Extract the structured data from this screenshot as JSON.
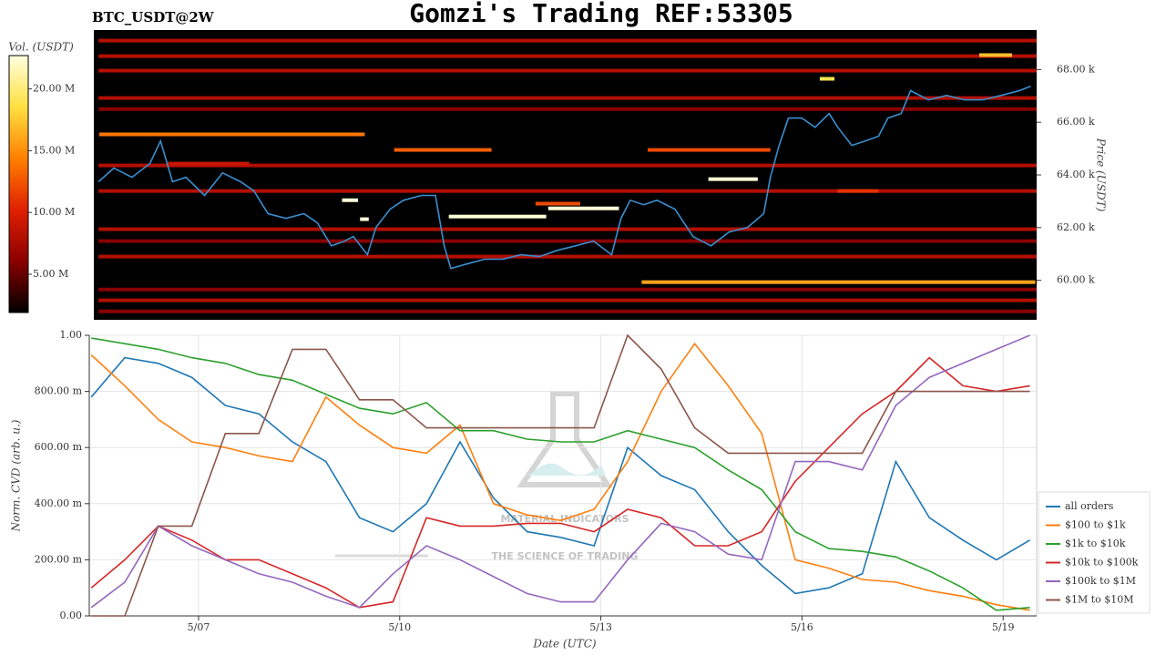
{
  "chart_data": [
    {
      "type": "heatmap",
      "title": "Gomzi's Trading REF:53305",
      "subtitle": "BTC_USDT@2W",
      "ylabel": "Price (USDT)",
      "xlim": [
        5.37,
        19.5
      ],
      "ylim": [
        58500,
        69500
      ],
      "yticks": [
        {
          "value": 60000,
          "label": "60.00 k"
        },
        {
          "value": 62000,
          "label": "62.00 k"
        },
        {
          "value": 64000,
          "label": "64.00 k"
        },
        {
          "value": 66000,
          "label": "66.00 k"
        },
        {
          "value": 68000,
          "label": "68.00 k"
        }
      ],
      "colorbar": {
        "label": "Vol. (USDT)",
        "clim": [
          1900000,
          22700000
        ],
        "ticks": [
          {
            "value": 5000000,
            "label": "5.00 M"
          },
          {
            "value": 10000000,
            "label": "10.00 M"
          },
          {
            "value": 15000000,
            "label": "15.00 M"
          },
          {
            "value": 20000000,
            "label": "20.00 M"
          }
        ],
        "colors": [
          "#000000",
          "#8b0000",
          "#e02000",
          "#ff8000",
          "#ffe040",
          "#ffffe0"
        ]
      },
      "levels": {
        "price": [
          69100,
          68510,
          67960,
          66920,
          66500,
          64360,
          63390,
          61940,
          61490,
          60900,
          59240,
          59650,
          58820,
          63040,
          62320,
          62420,
          62730,
          63840,
          67650,
          68550,
          65540,
          59930,
          64950,
          64950,
          62910,
          64430,
          63390
        ],
        "start": [
          5.44,
          5.44,
          5.44,
          5.44,
          5.44,
          5.44,
          5.44,
          5.44,
          5.44,
          5.44,
          5.44,
          5.44,
          5.44,
          9.09,
          9.36,
          10.69,
          12.18,
          14.58,
          16.25,
          18.64,
          5.45,
          13.58,
          9.87,
          13.67,
          11.99,
          6.48,
          16.52
        ],
        "end": [
          19.5,
          19.5,
          19.5,
          19.5,
          19.5,
          19.5,
          19.5,
          19.5,
          19.5,
          19.5,
          19.5,
          19.5,
          19.5,
          9.33,
          9.49,
          12.15,
          13.24,
          15.32,
          16.47,
          19.13,
          9.43,
          19.48,
          11.33,
          15.51,
          12.66,
          7.7,
          17.13
        ],
        "volume": [
          8000000,
          8000000,
          8000000,
          8000000,
          6000000,
          8000000,
          8000000,
          8000000,
          6000000,
          8000000,
          8000000,
          6000000,
          6000000,
          22500000,
          22500000,
          22500000,
          22500000,
          22500000,
          19000000,
          17000000,
          14000000,
          16000000,
          13000000,
          12000000,
          12000000,
          9000000,
          11000000
        ]
      },
      "line": {
        "color": "#3a8fd0",
        "x": [
          5.44,
          5.67,
          5.94,
          6.21,
          6.37,
          6.55,
          6.75,
          7.03,
          7.3,
          7.57,
          7.77,
          7.98,
          8.25,
          8.52,
          8.72,
          8.93,
          9.13,
          9.26,
          9.47,
          9.6,
          9.81,
          10.01,
          10.28,
          10.49,
          10.62,
          10.72,
          10.96,
          11.23,
          11.5,
          11.77,
          12.05,
          12.32,
          12.59,
          12.86,
          13.13,
          13.27,
          13.41,
          13.61,
          13.81,
          14.08,
          14.35,
          14.62,
          14.89,
          15.17,
          15.41,
          15.51,
          15.64,
          15.78,
          15.98,
          16.18,
          16.39,
          16.52,
          16.73,
          16.93,
          17.13,
          17.27,
          17.47,
          17.61,
          17.88,
          18.15,
          18.42,
          18.69,
          18.97,
          19.24,
          19.41
        ],
        "values": [
          63740,
          64260,
          63910,
          64430,
          65290,
          63740,
          63910,
          63220,
          64080,
          63740,
          63390,
          62530,
          62350,
          62530,
          62180,
          61310,
          61490,
          61660,
          60970,
          62010,
          62700,
          63040,
          63220,
          63220,
          61310,
          60450,
          60620,
          60800,
          60800,
          60970,
          60900,
          61140,
          61310,
          61490,
          60970,
          62350,
          63040,
          62870,
          63040,
          62700,
          61660,
          61310,
          61830,
          62010,
          62530,
          63910,
          65120,
          66160,
          66160,
          65810,
          66330,
          65810,
          65120,
          65290,
          65470,
          66160,
          66330,
          67200,
          66850,
          67020,
          66850,
          66850,
          67020,
          67200,
          67370
        ]
      }
    },
    {
      "type": "line",
      "xlabel": "Date (UTC)",
      "ylabel": "Norm. CVD (arb. u.)",
      "grid": true,
      "legend": "lower right",
      "watermark": {
        "title": "MATERIAL INDICATORS",
        "subtitle": "THE SCIENCE OF TRADING"
      },
      "xlim": [
        5.37,
        19.5
      ],
      "xticks": [
        {
          "value": 7,
          "label": "5/07"
        },
        {
          "value": 10,
          "label": "5/10"
        },
        {
          "value": 13,
          "label": "5/13"
        },
        {
          "value": 16,
          "label": "5/16"
        },
        {
          "value": 19,
          "label": "5/19"
        }
      ],
      "ylim": [
        0,
        1
      ],
      "yticks": [
        {
          "value": 0,
          "label": "0.00"
        },
        {
          "value": 0.2,
          "label": "200.00 m"
        },
        {
          "value": 0.4,
          "label": "400.00 m"
        },
        {
          "value": 0.6,
          "label": "600.00 m"
        },
        {
          "value": 0.8,
          "label": "800.00 m"
        },
        {
          "value": 1,
          "label": "1.00"
        }
      ],
      "x": [
        5.4,
        5.9,
        6.4,
        6.9,
        7.4,
        7.9,
        8.4,
        8.9,
        9.4,
        9.9,
        10.4,
        10.9,
        11.4,
        11.9,
        12.4,
        12.9,
        13.4,
        13.9,
        14.4,
        14.9,
        15.4,
        15.9,
        16.4,
        16.9,
        17.4,
        17.9,
        18.4,
        18.9,
        19.4
      ],
      "series": [
        {
          "name": "all orders",
          "color": "#1f77b4",
          "values": [
            0.78,
            0.92,
            0.9,
            0.85,
            0.75,
            0.72,
            0.62,
            0.55,
            0.35,
            0.3,
            0.4,
            0.62,
            0.42,
            0.3,
            0.28,
            0.25,
            0.6,
            0.5,
            0.45,
            0.3,
            0.18,
            0.08,
            0.1,
            0.15,
            0.55,
            0.35,
            0.27,
            0.2,
            0.27
          ]
        },
        {
          "name": "$100 to $1k",
          "color": "#ff7f0e",
          "values": [
            0.93,
            0.82,
            0.7,
            0.62,
            0.6,
            0.57,
            0.55,
            0.78,
            0.68,
            0.6,
            0.58,
            0.68,
            0.4,
            0.36,
            0.34,
            0.38,
            0.55,
            0.8,
            0.97,
            0.82,
            0.65,
            0.2,
            0.17,
            0.13,
            0.12,
            0.09,
            0.07,
            0.04,
            0.02
          ]
        },
        {
          "name": "$1k to $10k",
          "color": "#2ca02c",
          "values": [
            0.99,
            0.97,
            0.95,
            0.92,
            0.9,
            0.86,
            0.84,
            0.79,
            0.74,
            0.72,
            0.76,
            0.66,
            0.66,
            0.63,
            0.62,
            0.62,
            0.66,
            0.63,
            0.6,
            0.52,
            0.45,
            0.3,
            0.24,
            0.23,
            0.21,
            0.16,
            0.1,
            0.02,
            0.03
          ]
        },
        {
          "name": "$10k to $100k",
          "color": "#d62728",
          "values": [
            0.1,
            0.2,
            0.32,
            0.27,
            0.2,
            0.2,
            0.15,
            0.1,
            0.03,
            0.05,
            0.35,
            0.32,
            0.32,
            0.33,
            0.33,
            0.3,
            0.38,
            0.35,
            0.25,
            0.25,
            0.3,
            0.48,
            0.6,
            0.72,
            0.8,
            0.92,
            0.82,
            0.8,
            0.82
          ]
        },
        {
          "name": "$100k to $1M",
          "color": "#9467bd",
          "values": [
            0.03,
            0.12,
            0.32,
            0.25,
            0.2,
            0.15,
            0.12,
            0.07,
            0.03,
            0.15,
            0.25,
            0.2,
            0.14,
            0.08,
            0.05,
            0.05,
            0.2,
            0.33,
            0.3,
            0.22,
            0.2,
            0.55,
            0.55,
            0.52,
            0.75,
            0.85,
            0.9,
            0.95,
            1.0
          ]
        },
        {
          "name": "$1M to $10M",
          "color": "#8c564b",
          "values": [
            0.0,
            0.0,
            0.32,
            0.32,
            0.65,
            0.65,
            0.95,
            0.95,
            0.77,
            0.77,
            0.67,
            0.67,
            0.67,
            0.67,
            0.67,
            0.67,
            1.0,
            0.88,
            0.67,
            0.58,
            0.58,
            0.58,
            0.58,
            0.58,
            0.8,
            0.8,
            0.8,
            0.8,
            0.8
          ]
        }
      ]
    }
  ]
}
